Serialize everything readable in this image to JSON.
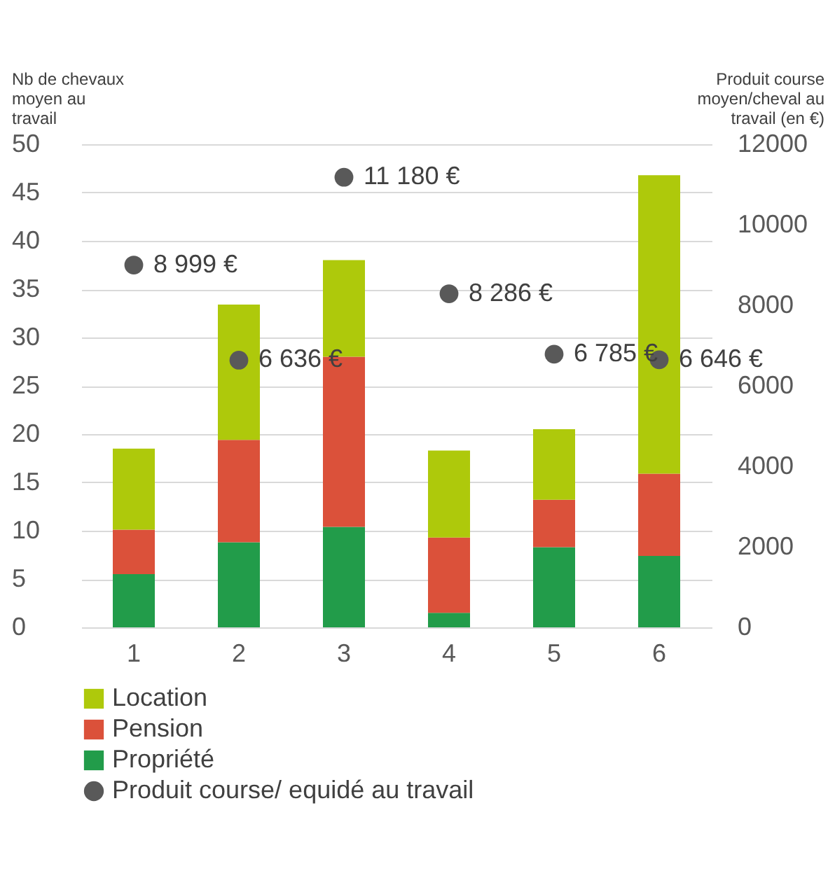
{
  "chart_data": {
    "type": "bar",
    "stacked": true,
    "categories": [
      "1",
      "2",
      "3",
      "4",
      "5",
      "6"
    ],
    "ylabel": "Nb de chevaux moyen au travail",
    "y2label": "Produit course moyen/cheval au travail (en €)",
    "ylim": [
      0,
      50
    ],
    "yticks": [
      0,
      5,
      10,
      15,
      20,
      25,
      30,
      35,
      40,
      45,
      50
    ],
    "y2lim": [
      0,
      12000
    ],
    "y2ticks": [
      0,
      2000,
      4000,
      6000,
      8000,
      10000,
      12000
    ],
    "grid": "y",
    "legend": "bottom",
    "marker": "circle",
    "series": [
      {
        "name": "Propriété",
        "color": "#229c4a",
        "values": [
          5.5,
          8.8,
          10.4,
          1.5,
          8.3,
          7.4
        ]
      },
      {
        "name": "Pension",
        "color": "#db513a",
        "values": [
          4.6,
          10.6,
          17.6,
          7.8,
          4.9,
          8.5
        ]
      },
      {
        "name": "Location",
        "color": "#aec90b",
        "values": [
          8.4,
          14.0,
          10.0,
          9.0,
          7.3,
          30.9
        ]
      },
      {
        "name": "Produit course/ equidé au travail",
        "type": "scatter",
        "axis": "y2",
        "color": "#595959",
        "values": [
          8999,
          6636,
          11180,
          8286,
          6785,
          6646
        ],
        "value_labels": [
          "8 999 €",
          "6 636 €",
          "11 180 €",
          "8 286 €",
          "6 785 €",
          "6 646 €"
        ]
      }
    ]
  }
}
